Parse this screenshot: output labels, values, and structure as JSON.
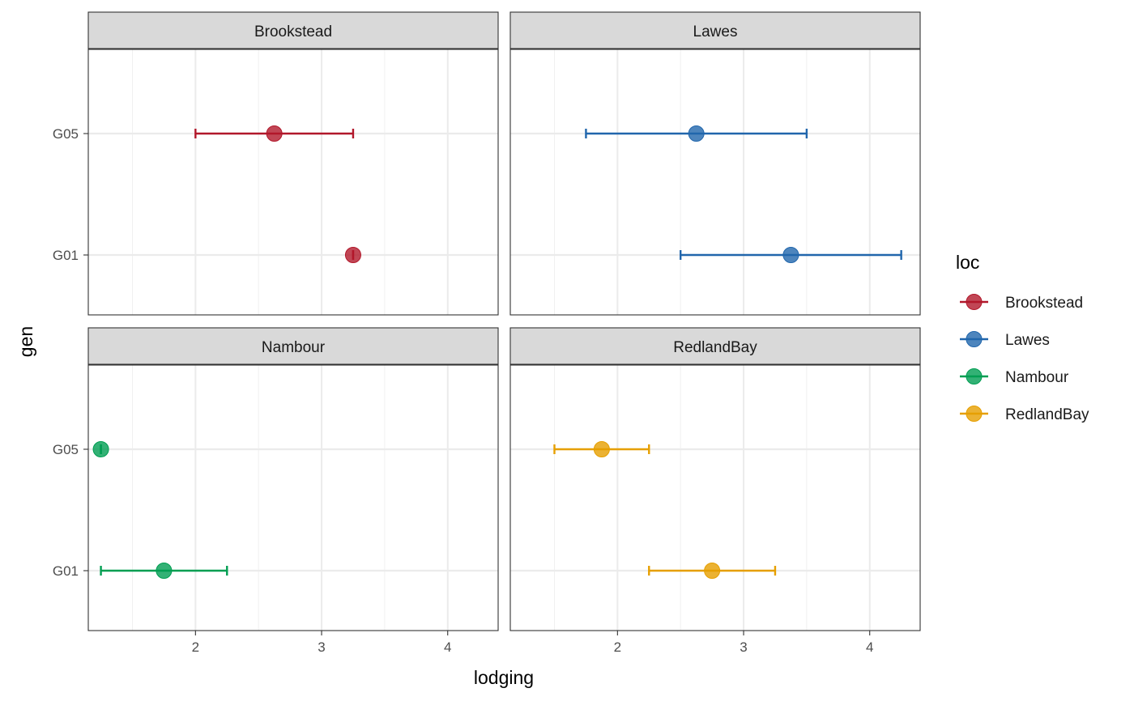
{
  "chart_data": {
    "type": "errorbar-point",
    "xlabel": "lodging",
    "ylabel": "gen",
    "xlim": [
      1.15,
      4.4
    ],
    "x_ticks": [
      2,
      3,
      4
    ],
    "x_minor_ticks": [
      1.5,
      2.5,
      3.5
    ],
    "y_categories": [
      "G01",
      "G05"
    ],
    "legend": {
      "title": "loc",
      "position": "right",
      "entries": [
        {
          "label": "Brookstead",
          "color": "#B2182B"
        },
        {
          "label": "Lawes",
          "color": "#2166AC"
        },
        {
          "label": "Nambour",
          "color": "#009E52"
        },
        {
          "label": "RedlandBay",
          "color": "#E69F00"
        }
      ]
    },
    "panels": [
      {
        "strip": "Brookstead",
        "color": "#B2182B",
        "points": [
          {
            "gen": "G05",
            "mean": 2.625,
            "lower": 2.0,
            "upper": 3.25
          },
          {
            "gen": "G01",
            "mean": 3.25,
            "lower": 3.25,
            "upper": 3.25
          }
        ]
      },
      {
        "strip": "Lawes",
        "color": "#2166AC",
        "points": [
          {
            "gen": "G05",
            "mean": 2.625,
            "lower": 1.75,
            "upper": 3.5
          },
          {
            "gen": "G01",
            "mean": 3.375,
            "lower": 2.5,
            "upper": 4.25
          }
        ]
      },
      {
        "strip": "Nambour",
        "color": "#009E52",
        "points": [
          {
            "gen": "G05",
            "mean": 1.25,
            "lower": 1.25,
            "upper": 1.25
          },
          {
            "gen": "G01",
            "mean": 1.75,
            "lower": 1.25,
            "upper": 2.25
          }
        ]
      },
      {
        "strip": "RedlandBay",
        "color": "#E69F00",
        "points": [
          {
            "gen": "G05",
            "mean": 1.875,
            "lower": 1.5,
            "upper": 2.25
          },
          {
            "gen": "G01",
            "mean": 2.75,
            "lower": 2.25,
            "upper": 3.25
          }
        ]
      }
    ]
  }
}
